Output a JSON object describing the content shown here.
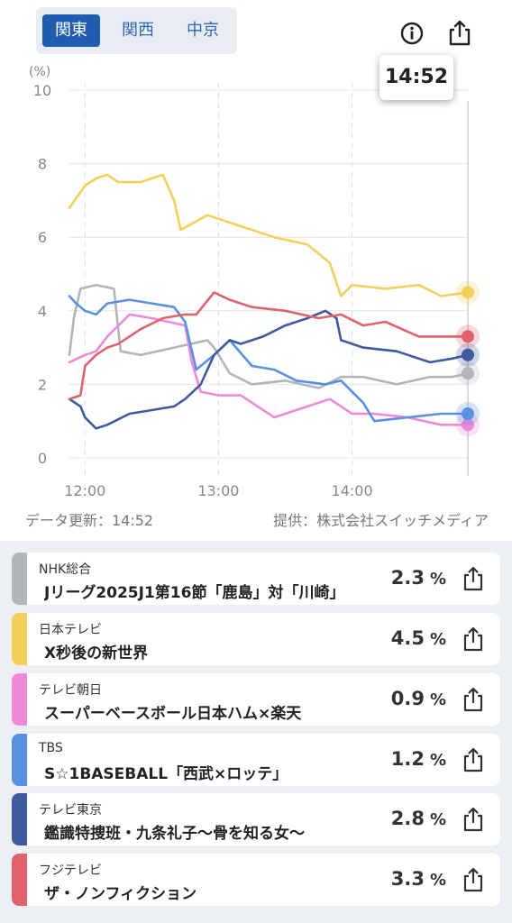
{
  "tabs": [
    {
      "label": "関東",
      "active": true
    },
    {
      "label": "関西",
      "active": false
    },
    {
      "label": "中京",
      "active": false
    }
  ],
  "tooltip_time": "14:52",
  "footer": {
    "updated": "データ更新：14:52",
    "provider": "提供：株式会社スイッチメディア"
  },
  "chart_data": {
    "type": "line",
    "ylabel": "(%)",
    "ylim": [
      0,
      10
    ],
    "yticks": [
      "0",
      "2",
      "4",
      "6",
      "8",
      "10"
    ],
    "xticks": [
      "12:00",
      "13:00",
      "14:00"
    ],
    "x_range": [
      "11:53",
      "14:52"
    ],
    "grid": true,
    "series": [
      {
        "name": "NHK総合",
        "color": "#b2b5ba",
        "x": [
          "11:53",
          "11:55",
          "11:58",
          "12:05",
          "12:13",
          "12:16",
          "12:25",
          "12:40",
          "12:55",
          "12:58",
          "13:05",
          "13:15",
          "13:30",
          "13:45",
          "13:55",
          "14:05",
          "14:20",
          "14:35",
          "14:45",
          "14:52"
        ],
        "values": [
          2.8,
          3.8,
          4.6,
          4.7,
          4.6,
          2.9,
          2.8,
          3.0,
          3.2,
          3.0,
          2.3,
          2.0,
          2.1,
          1.9,
          2.2,
          2.2,
          2.0,
          2.2,
          2.2,
          2.3
        ]
      },
      {
        "name": "日本テレビ",
        "color": "#f5cf5c",
        "x": [
          "11:53",
          "12:00",
          "12:05",
          "12:10",
          "12:15",
          "12:25",
          "12:35",
          "12:40",
          "12:43",
          "12:55",
          "13:10",
          "13:25",
          "13:40",
          "13:50",
          "13:55",
          "14:00",
          "14:15",
          "14:30",
          "14:40",
          "14:52"
        ],
        "values": [
          6.8,
          7.4,
          7.6,
          7.7,
          7.5,
          7.5,
          7.7,
          7.0,
          6.2,
          6.6,
          6.3,
          6.0,
          5.8,
          5.3,
          4.4,
          4.7,
          4.6,
          4.7,
          4.4,
          4.5
        ]
      },
      {
        "name": "テレビ朝日",
        "color": "#f088d8",
        "x": [
          "11:53",
          "12:00",
          "12:05",
          "12:10",
          "12:20",
          "12:30",
          "12:45",
          "12:48",
          "12:52",
          "13:00",
          "13:10",
          "13:25",
          "13:30",
          "13:40",
          "13:50",
          "14:00",
          "14:10",
          "14:25",
          "14:40",
          "14:52"
        ],
        "values": [
          2.6,
          2.8,
          2.9,
          3.3,
          3.9,
          3.8,
          3.6,
          2.6,
          1.8,
          1.7,
          1.7,
          1.1,
          1.2,
          1.4,
          1.6,
          1.2,
          1.2,
          1.1,
          0.9,
          0.9
        ]
      },
      {
        "name": "TBS",
        "color": "#5a90e0",
        "x": [
          "11:53",
          "11:56",
          "12:00",
          "12:05",
          "12:10",
          "12:20",
          "12:30",
          "12:40",
          "12:45",
          "12:50",
          "12:58",
          "13:05",
          "13:15",
          "13:25",
          "13:35",
          "13:48",
          "13:55",
          "14:05",
          "14:10",
          "14:25",
          "14:40",
          "14:52"
        ],
        "values": [
          4.4,
          4.2,
          4.0,
          3.9,
          4.2,
          4.3,
          4.2,
          4.1,
          3.7,
          2.4,
          2.8,
          3.2,
          2.5,
          2.4,
          2.1,
          2.0,
          2.1,
          1.5,
          1.0,
          1.1,
          1.2,
          1.2
        ]
      },
      {
        "name": "テレビ東京",
        "color": "#3f5b9e",
        "x": [
          "11:53",
          "11:58",
          "12:00",
          "12:05",
          "12:10",
          "12:20",
          "12:30",
          "12:40",
          "12:45",
          "12:52",
          "12:58",
          "13:05",
          "13:10",
          "13:20",
          "13:30",
          "13:40",
          "13:48",
          "13:53",
          "13:55",
          "14:05",
          "14:20",
          "14:35",
          "14:45",
          "14:52"
        ],
        "values": [
          1.6,
          1.4,
          1.1,
          0.8,
          0.9,
          1.2,
          1.3,
          1.4,
          1.6,
          2.0,
          2.8,
          3.2,
          3.1,
          3.3,
          3.6,
          3.8,
          4.0,
          3.8,
          3.2,
          3.0,
          2.9,
          2.6,
          2.7,
          2.8
        ]
      },
      {
        "name": "フジテレビ",
        "color": "#e0636b",
        "x": [
          "11:53",
          "11:58",
          "12:00",
          "12:05",
          "12:10",
          "12:15",
          "12:25",
          "12:35",
          "12:45",
          "12:50",
          "12:58",
          "13:05",
          "13:15",
          "13:30",
          "13:45",
          "13:55",
          "14:05",
          "14:15",
          "14:30",
          "14:45",
          "14:52"
        ],
        "values": [
          1.6,
          1.7,
          2.5,
          2.8,
          3.0,
          3.1,
          3.5,
          3.8,
          3.9,
          3.9,
          4.5,
          4.3,
          4.1,
          4.0,
          3.8,
          3.9,
          3.6,
          3.7,
          3.3,
          3.3,
          3.3
        ]
      }
    ]
  },
  "channels": [
    {
      "name": "NHK総合",
      "program": "Jリーグ2025J1第16節「鹿島」対「川崎」",
      "rate": "2.3",
      "unit": "%",
      "color": "#b2b5ba"
    },
    {
      "name": "日本テレビ",
      "program": "X秒後の新世界",
      "rate": "4.5",
      "unit": "%",
      "color": "#f5cf5c"
    },
    {
      "name": "テレビ朝日",
      "program": "スーパーベースボール日本ハム×楽天",
      "rate": "0.9",
      "unit": "%",
      "color": "#f088d8"
    },
    {
      "name": "TBS",
      "program": "S☆1BASEBALL「西武×ロッテ」",
      "rate": "1.2",
      "unit": "%",
      "color": "#5a90e0"
    },
    {
      "name": "テレビ東京",
      "program": "鑑識特捜班・九条礼子～骨を知る女～",
      "rate": "2.8",
      "unit": "%",
      "color": "#3f5b9e"
    },
    {
      "name": "フジテレビ",
      "program": "ザ・ノンフィクション",
      "rate": "3.3",
      "unit": "%",
      "color": "#e0636b"
    }
  ],
  "icons": {
    "info": "info-icon",
    "share": "share-icon"
  }
}
